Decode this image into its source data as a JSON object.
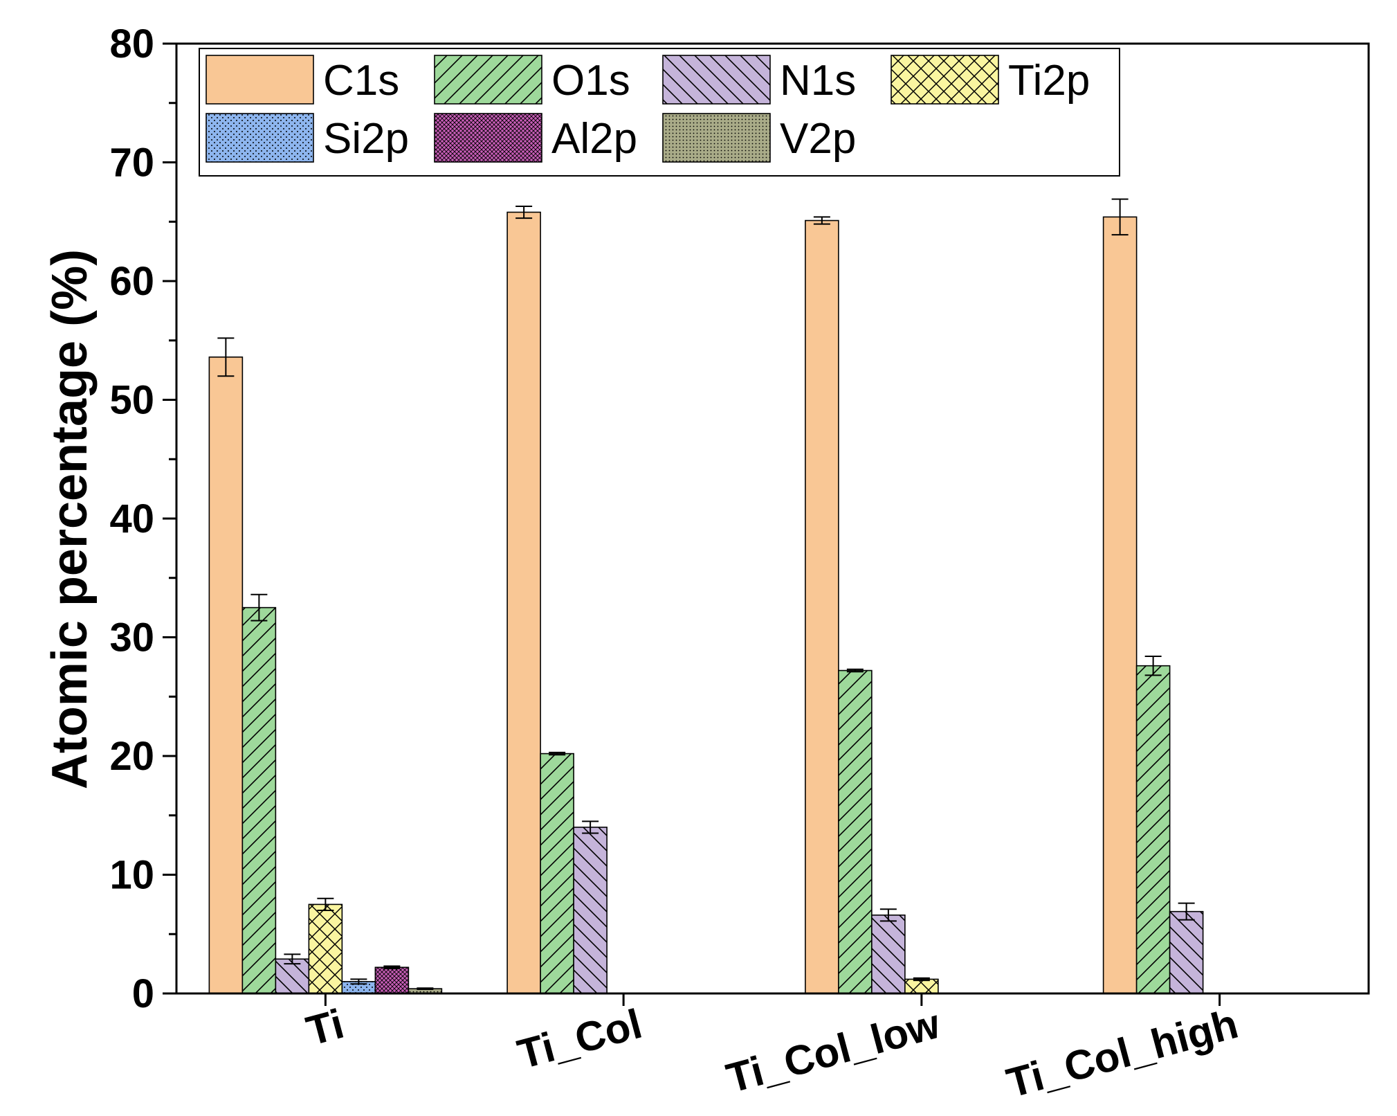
{
  "chart_data": {
    "type": "bar",
    "title": "",
    "xlabel": "",
    "ylabel": "Atomic percentage (%)",
    "ylim": [
      0,
      80
    ],
    "yticks": [
      0,
      10,
      20,
      30,
      40,
      50,
      60,
      70,
      80
    ],
    "categories": [
      "Ti",
      "Ti_Col",
      "Ti_Col_low",
      "Ti_Col_high"
    ],
    "legend_position": "top-left",
    "series": [
      {
        "name": "C1s",
        "color": "#F9C795",
        "pattern": "solid",
        "values": [
          53.6,
          65.8,
          65.1,
          65.4
        ],
        "errors": [
          1.6,
          0.5,
          0.3,
          1.5
        ]
      },
      {
        "name": "O1s",
        "color": "#9ED99B",
        "pattern": "diag-forward",
        "values": [
          32.5,
          20.2,
          27.2,
          27.6
        ],
        "errors": [
          1.1,
          0.1,
          0.1,
          0.8
        ]
      },
      {
        "name": "N1s",
        "color": "#C5B4DA",
        "pattern": "diag-back",
        "values": [
          2.9,
          14.0,
          6.6,
          6.9
        ],
        "errors": [
          0.4,
          0.5,
          0.5,
          0.7
        ]
      },
      {
        "name": "Ti2p",
        "color": "#FAF5A0",
        "pattern": "cross",
        "values": [
          7.5,
          0,
          1.2,
          0
        ],
        "errors": [
          0.5,
          0,
          0.1,
          0
        ]
      },
      {
        "name": "Si2p",
        "color": "#8DB5EE",
        "pattern": "dots",
        "values": [
          1.0,
          0,
          0,
          0
        ],
        "errors": [
          0.2,
          0,
          0,
          0
        ]
      },
      {
        "name": "Al2p",
        "color": "#C75DB7",
        "pattern": "dense-cross",
        "values": [
          2.2,
          0,
          0,
          0
        ],
        "errors": [
          0.1,
          0,
          0,
          0
        ]
      },
      {
        "name": "V2p",
        "color": "#A9AB88",
        "pattern": "dense-dots",
        "values": [
          0.4,
          0,
          0,
          0
        ],
        "errors": [
          0.05,
          0,
          0,
          0
        ]
      }
    ]
  }
}
